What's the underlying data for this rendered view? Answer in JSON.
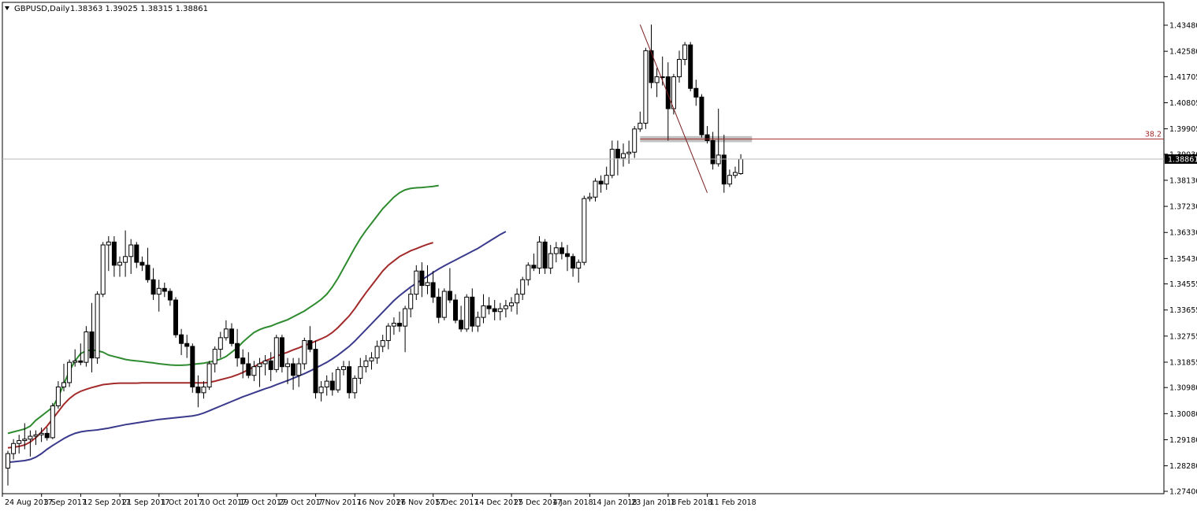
{
  "header": {
    "symbol": "GBPUSD,Daily",
    "ohlc": "1.38363 1.39025 1.38315 1.38861"
  },
  "chart_data": {
    "type": "candlestick",
    "title": "GBPUSD,Daily",
    "ylim": [
      1.274,
      1.438
    ],
    "y_ticks": [
      1.4348,
      1.4258,
      1.41705,
      1.40805,
      1.39905,
      1.3903,
      1.3813,
      1.3723,
      1.3633,
      1.3543,
      1.34555,
      1.33655,
      1.32755,
      1.31855,
      1.3098,
      1.3008,
      1.2918,
      1.2828,
      1.274
    ],
    "y_tick_labels": [
      "1.43480",
      "1.42580",
      "1.41705",
      "1.40805",
      "1.39905",
      "1.39030",
      "1.38130",
      "1.37230",
      "1.36330",
      "1.35430",
      "1.34555",
      "1.33655",
      "1.32755",
      "1.31855",
      "1.30980",
      "1.30080",
      "1.29180",
      "1.28280",
      "1.27400"
    ],
    "x_labels": [
      {
        "label": "24 Aug 2017",
        "idx": 0
      },
      {
        "label": "3 Sep 2017",
        "idx": 7
      },
      {
        "label": "12 Sep 2017",
        "idx": 14
      },
      {
        "label": "21 Sep 2017",
        "idx": 21
      },
      {
        "label": "1 Oct 2017",
        "idx": 28
      },
      {
        "label": "10 Oct 2017",
        "idx": 35
      },
      {
        "label": "19 Oct 2017",
        "idx": 42
      },
      {
        "label": "29 Oct 2017",
        "idx": 49
      },
      {
        "label": "7 Nov 2017",
        "idx": 56
      },
      {
        "label": "16 Nov 2017",
        "idx": 63
      },
      {
        "label": "26 Nov 2017",
        "idx": 70
      },
      {
        "label": "5 Dec 2017",
        "idx": 77
      },
      {
        "label": "14 Dec 2017",
        "idx": 84
      },
      {
        "label": "25 Dec 2017",
        "idx": 91
      },
      {
        "label": "4 Jan 2018",
        "idx": 98
      },
      {
        "label": "14 Jan 2018",
        "idx": 105
      },
      {
        "label": "23 Jan 2018",
        "idx": 112
      },
      {
        "label": "1 Feb 2018",
        "idx": 119
      },
      {
        "label": "11 Feb 2018",
        "idx": 126
      }
    ],
    "current_price": 1.38861,
    "current_price_label": "1.38861",
    "fib_label": "38.2",
    "fib_level": 1.3955,
    "fib_zone": [
      1.395,
      1.396,
      113,
      133
    ],
    "trendline": [
      [
        113,
        1.435
      ],
      [
        125,
        1.377
      ]
    ],
    "candles": [
      [
        1.282,
        1.288,
        1.276,
        1.287
      ],
      [
        1.287,
        1.292,
        1.285,
        1.2905
      ],
      [
        1.2905,
        1.2935,
        1.287,
        1.2915
      ],
      [
        1.2915,
        1.2975,
        1.2885,
        1.292
      ],
      [
        1.292,
        1.295,
        1.286,
        1.293
      ],
      [
        1.293,
        1.295,
        1.29,
        1.2935
      ],
      [
        1.2935,
        1.296,
        1.291,
        1.294
      ],
      [
        1.294,
        1.296,
        1.2915,
        1.2925
      ],
      [
        1.2925,
        1.3045,
        1.292,
        1.3035
      ],
      [
        1.3035,
        1.312,
        1.3025,
        1.31
      ],
      [
        1.31,
        1.318,
        1.3085,
        1.3115
      ],
      [
        1.3115,
        1.3195,
        1.31,
        1.3185
      ],
      [
        1.3185,
        1.323,
        1.317,
        1.319
      ],
      [
        1.319,
        1.325,
        1.3175,
        1.3185
      ],
      [
        1.3185,
        1.331,
        1.317,
        1.329
      ],
      [
        1.329,
        1.339,
        1.315,
        1.32
      ],
      [
        1.32,
        1.343,
        1.318,
        1.342
      ],
      [
        1.342,
        1.36,
        1.341,
        1.359
      ],
      [
        1.359,
        1.362,
        1.35,
        1.36
      ],
      [
        1.36,
        1.362,
        1.348,
        1.352
      ],
      [
        1.352,
        1.355,
        1.348,
        1.353
      ],
      [
        1.353,
        1.364,
        1.348,
        1.355
      ],
      [
        1.355,
        1.361,
        1.349,
        1.359
      ],
      [
        1.359,
        1.36,
        1.351,
        1.353
      ],
      [
        1.353,
        1.355,
        1.35,
        1.352
      ],
      [
        1.352,
        1.358,
        1.346,
        1.347
      ],
      [
        1.347,
        1.351,
        1.34,
        1.342
      ],
      [
        1.342,
        1.347,
        1.336,
        1.344
      ],
      [
        1.344,
        1.346,
        1.341,
        1.343
      ],
      [
        1.343,
        1.344,
        1.338,
        1.34
      ],
      [
        1.34,
        1.341,
        1.327,
        1.328
      ],
      [
        1.328,
        1.33,
        1.321,
        1.325
      ],
      [
        1.325,
        1.328,
        1.32,
        1.324
      ],
      [
        1.324,
        1.325,
        1.308,
        1.31
      ],
      [
        1.31,
        1.314,
        1.303,
        1.308
      ],
      [
        1.308,
        1.312,
        1.306,
        1.31
      ],
      [
        1.31,
        1.319,
        1.309,
        1.318
      ],
      [
        1.318,
        1.324,
        1.315,
        1.323
      ],
      [
        1.323,
        1.329,
        1.32,
        1.327
      ],
      [
        1.327,
        1.333,
        1.326,
        1.33
      ],
      [
        1.33,
        1.332,
        1.324,
        1.325
      ],
      [
        1.325,
        1.33,
        1.317,
        1.32
      ],
      [
        1.32,
        1.323,
        1.313,
        1.318
      ],
      [
        1.318,
        1.322,
        1.313,
        1.314
      ],
      [
        1.314,
        1.319,
        1.312,
        1.317
      ],
      [
        1.317,
        1.32,
        1.31,
        1.318
      ],
      [
        1.318,
        1.321,
        1.314,
        1.319
      ],
      [
        1.319,
        1.322,
        1.312,
        1.316
      ],
      [
        1.316,
        1.328,
        1.315,
        1.327
      ],
      [
        1.327,
        1.328,
        1.315,
        1.317
      ],
      [
        1.317,
        1.32,
        1.311,
        1.318
      ],
      [
        1.318,
        1.32,
        1.309,
        1.314
      ],
      [
        1.314,
        1.32,
        1.31,
        1.318
      ],
      [
        1.318,
        1.327,
        1.316,
        1.326
      ],
      [
        1.326,
        1.331,
        1.322,
        1.323
      ],
      [
        1.323,
        1.326,
        1.306,
        1.308
      ],
      [
        1.308,
        1.312,
        1.305,
        1.31
      ],
      [
        1.31,
        1.314,
        1.307,
        1.312
      ],
      [
        1.312,
        1.315,
        1.307,
        1.309
      ],
      [
        1.309,
        1.317,
        1.308,
        1.316
      ],
      [
        1.316,
        1.319,
        1.314,
        1.317
      ],
      [
        1.317,
        1.319,
        1.306,
        1.308
      ],
      [
        1.308,
        1.314,
        1.306,
        1.313
      ],
      [
        1.313,
        1.32,
        1.311,
        1.317
      ],
      [
        1.317,
        1.321,
        1.315,
        1.319
      ],
      [
        1.319,
        1.322,
        1.316,
        1.32
      ],
      [
        1.32,
        1.326,
        1.318,
        1.324
      ],
      [
        1.324,
        1.328,
        1.322,
        1.326
      ],
      [
        1.326,
        1.332,
        1.323,
        1.331
      ],
      [
        1.331,
        1.334,
        1.328,
        1.332
      ],
      [
        1.332,
        1.336,
        1.329,
        1.331
      ],
      [
        1.331,
        1.338,
        1.322,
        1.337
      ],
      [
        1.337,
        1.344,
        1.334,
        1.342
      ],
      [
        1.342,
        1.352,
        1.34,
        1.35
      ],
      [
        1.35,
        1.353,
        1.341,
        1.345
      ],
      [
        1.345,
        1.352,
        1.342,
        1.346
      ],
      [
        1.346,
        1.35,
        1.339,
        1.341
      ],
      [
        1.341,
        1.344,
        1.332,
        1.334
      ],
      [
        1.334,
        1.344,
        1.333,
        1.343
      ],
      [
        1.343,
        1.351,
        1.339,
        1.34
      ],
      [
        1.34,
        1.342,
        1.332,
        1.333
      ],
      [
        1.333,
        1.338,
        1.329,
        1.33
      ],
      [
        1.33,
        1.342,
        1.329,
        1.341
      ],
      [
        1.341,
        1.344,
        1.329,
        1.331
      ],
      [
        1.331,
        1.336,
        1.329,
        1.334
      ],
      [
        1.334,
        1.342,
        1.332,
        1.338
      ],
      [
        1.338,
        1.341,
        1.335,
        1.337
      ],
      [
        1.337,
        1.34,
        1.333,
        1.336
      ],
      [
        1.336,
        1.339,
        1.333,
        1.337
      ],
      [
        1.337,
        1.34,
        1.334,
        1.338
      ],
      [
        1.338,
        1.341,
        1.336,
        1.339
      ],
      [
        1.339,
        1.344,
        1.335,
        1.342
      ],
      [
        1.342,
        1.348,
        1.34,
        1.347
      ],
      [
        1.347,
        1.353,
        1.345,
        1.352
      ],
      [
        1.352,
        1.356,
        1.35,
        1.351
      ],
      [
        1.351,
        1.362,
        1.349,
        1.36
      ],
      [
        1.36,
        1.361,
        1.349,
        1.351
      ],
      [
        1.351,
        1.359,
        1.349,
        1.356
      ],
      [
        1.356,
        1.36,
        1.353,
        1.358
      ],
      [
        1.358,
        1.36,
        1.354,
        1.356
      ],
      [
        1.356,
        1.359,
        1.35,
        1.355
      ],
      [
        1.355,
        1.356,
        1.348,
        1.351
      ],
      [
        1.351,
        1.354,
        1.346,
        1.353
      ],
      [
        1.353,
        1.376,
        1.352,
        1.375
      ],
      [
        1.375,
        1.377,
        1.374,
        1.3755
      ],
      [
        1.3755,
        1.382,
        1.374,
        1.381
      ],
      [
        1.381,
        1.383,
        1.377,
        1.38
      ],
      [
        1.38,
        1.386,
        1.378,
        1.383
      ],
      [
        1.383,
        1.395,
        1.382,
        1.392
      ],
      [
        1.392,
        1.395,
        1.383,
        1.389
      ],
      [
        1.389,
        1.394,
        1.386,
        1.3905
      ],
      [
        1.3905,
        1.395,
        1.387,
        1.391
      ],
      [
        1.391,
        1.4,
        1.389,
        1.399
      ],
      [
        1.399,
        1.405,
        1.398,
        1.401
      ],
      [
        1.401,
        1.427,
        1.399,
        1.426
      ],
      [
        1.426,
        1.435,
        1.413,
        1.415
      ],
      [
        1.415,
        1.42,
        1.41,
        1.417
      ],
      [
        1.417,
        1.424,
        1.414,
        1.417
      ],
      [
        1.417,
        1.422,
        1.395,
        1.406
      ],
      [
        1.406,
        1.418,
        1.404,
        1.417
      ],
      [
        1.417,
        1.426,
        1.415,
        1.423
      ],
      [
        1.423,
        1.429,
        1.421,
        1.428
      ],
      [
        1.428,
        1.429,
        1.412,
        1.413
      ],
      [
        1.413,
        1.416,
        1.407,
        1.41
      ],
      [
        1.41,
        1.411,
        1.396,
        1.397
      ],
      [
        1.397,
        1.4,
        1.394,
        1.395
      ],
      [
        1.395,
        1.398,
        1.385,
        1.387
      ],
      [
        1.387,
        1.406,
        1.386,
        1.39
      ],
      [
        1.39,
        1.397,
        1.377,
        1.38
      ],
      [
        1.38,
        1.385,
        1.379,
        1.383
      ],
      [
        1.383,
        1.386,
        1.382,
        1.384
      ],
      [
        1.3836,
        1.3903,
        1.3832,
        1.3886
      ]
    ],
    "series": [
      {
        "name": "",
        "color": "#2f8b2f",
        "values": [
          1.294,
          1.2945,
          1.295,
          1.2955,
          1.2965,
          1.2985,
          1.3,
          1.3015,
          1.303,
          1.3065,
          1.311,
          1.3155,
          1.319,
          1.3215,
          1.3225,
          1.3228,
          1.3225,
          1.322,
          1.321,
          1.3205,
          1.32,
          1.3195,
          1.3192,
          1.319,
          1.3188,
          1.3185,
          1.3183,
          1.318,
          1.3178,
          1.3176,
          1.3175,
          1.3175,
          1.3176,
          1.3178,
          1.318,
          1.3182,
          1.3186,
          1.319,
          1.3196,
          1.3205,
          1.322,
          1.3235,
          1.3255,
          1.3272,
          1.3288,
          1.3298,
          1.3305,
          1.331,
          1.3318,
          1.3325,
          1.3332,
          1.3342,
          1.3352,
          1.3362,
          1.3375,
          1.3388,
          1.3402,
          1.342,
          1.3445,
          1.3475,
          1.351,
          1.3545,
          1.358,
          1.3612,
          1.364,
          1.3665,
          1.369,
          1.3715,
          1.3735,
          1.3755,
          1.377,
          1.378,
          1.3785,
          1.3787,
          1.3788,
          1.379,
          1.3792,
          1.3795
        ]
      },
      {
        "name": "",
        "color": "#a32a2a",
        "values": [
          1.289,
          1.2892,
          1.2895,
          1.29,
          1.291,
          1.2925,
          1.2945,
          1.2965,
          1.299,
          1.3015,
          1.304,
          1.306,
          1.3075,
          1.3085,
          1.3092,
          1.3098,
          1.3103,
          1.3108,
          1.311,
          1.3112,
          1.3113,
          1.3113,
          1.3113,
          1.3113,
          1.3114,
          1.3114,
          1.3114,
          1.3114,
          1.3114,
          1.3114,
          1.3114,
          1.3114,
          1.3114,
          1.3114,
          1.3114,
          1.3114,
          1.3116,
          1.312,
          1.3125,
          1.313,
          1.3135,
          1.3142,
          1.315,
          1.316,
          1.317,
          1.318,
          1.319,
          1.3198,
          1.3206,
          1.3213,
          1.322,
          1.3228,
          1.3235,
          1.3243,
          1.325,
          1.3258,
          1.3266,
          1.3275,
          1.3288,
          1.3305,
          1.3325,
          1.3345,
          1.337,
          1.3398,
          1.3425,
          1.345,
          1.3475,
          1.35,
          1.352,
          1.3535,
          1.355,
          1.356,
          1.357,
          1.3577,
          1.3585,
          1.3592,
          1.3598
        ]
      },
      {
        "name": "",
        "color": "#3a3a8c",
        "values": [
          1.284,
          1.2842,
          1.2844,
          1.2846,
          1.285,
          1.2858,
          1.287,
          1.2885,
          1.2898,
          1.291,
          1.2922,
          1.2932,
          1.294,
          1.2945,
          1.2948,
          1.295,
          1.2952,
          1.2955,
          1.2958,
          1.2962,
          1.2966,
          1.297,
          1.2973,
          1.2976,
          1.2979,
          1.2982,
          1.2985,
          1.2988,
          1.299,
          1.2992,
          1.2994,
          1.2996,
          1.2998,
          1.3,
          1.3004,
          1.301,
          1.3018,
          1.3026,
          1.3034,
          1.3042,
          1.305,
          1.3058,
          1.3066,
          1.3073,
          1.308,
          1.3087,
          1.3094,
          1.31,
          1.3108,
          1.3115,
          1.3122,
          1.313,
          1.3138,
          1.3146,
          1.3155,
          1.3165,
          1.3175,
          1.3185,
          1.3197,
          1.321,
          1.3225,
          1.324,
          1.3258,
          1.3278,
          1.3298,
          1.3318,
          1.3338,
          1.3358,
          1.3378,
          1.3398,
          1.3415,
          1.343,
          1.3445,
          1.3458,
          1.347,
          1.3482,
          1.3495,
          1.3507,
          1.3518,
          1.3528,
          1.3538,
          1.3548,
          1.3558,
          1.3568,
          1.3578,
          1.359,
          1.3602,
          1.3614,
          1.3626,
          1.3636
        ]
      }
    ],
    "grid": false,
    "legend": "none"
  }
}
